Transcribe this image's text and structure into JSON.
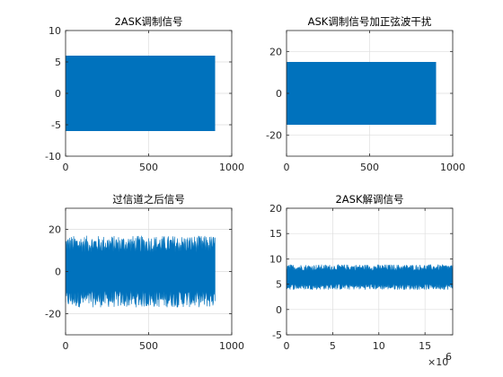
{
  "colors": {
    "signal": "#0072bd",
    "grid": "#dedede",
    "axis": "#262626",
    "background": "#ffffff"
  },
  "chart_data": [
    {
      "type": "line",
      "title": "2ASK调制信号",
      "xlim": [
        0,
        1000
      ],
      "ylim": [
        -10,
        10
      ],
      "xticks": [
        "0",
        "500",
        "1000"
      ],
      "yticks": [
        "-10",
        "-5",
        "0",
        "5",
        "10"
      ],
      "grid": true,
      "x_extent": [
        0,
        900
      ],
      "envelope": [
        -6,
        6
      ],
      "noise": 0,
      "x_multiplier": ""
    },
    {
      "type": "line",
      "title": "ASK调制信号加正弦波干扰",
      "xlim": [
        0,
        1000
      ],
      "ylim": [
        -30,
        30
      ],
      "xticks": [
        "0",
        "500",
        "1000"
      ],
      "yticks": [
        "-20",
        "0",
        "20"
      ],
      "grid": true,
      "x_extent": [
        0,
        900
      ],
      "envelope": [
        -15,
        15
      ],
      "noise": 0,
      "x_multiplier": ""
    },
    {
      "type": "line",
      "title": "过信道之后信号",
      "xlim": [
        0,
        1000
      ],
      "ylim": [
        -30,
        30
      ],
      "xticks": [
        "0",
        "500",
        "1000"
      ],
      "yticks": [
        "-20",
        "0",
        "20"
      ],
      "grid": true,
      "x_extent": [
        0,
        900
      ],
      "envelope": [
        -13,
        13
      ],
      "noise": 4,
      "x_multiplier": ""
    },
    {
      "type": "line",
      "title": "2ASK解调信号",
      "xlim": [
        0,
        18000000
      ],
      "ylim": [
        -5,
        20
      ],
      "xticks": [
        "0",
        "5",
        "10",
        "15"
      ],
      "yticks": [
        "-5",
        "0",
        "5",
        "10",
        "15",
        "20"
      ],
      "grid": true,
      "x_extent": [
        0,
        18000000
      ],
      "envelope": [
        4.5,
        8.3
      ],
      "noise": 0.6,
      "x_multiplier": "×10",
      "x_multiplier_exp": "6"
    }
  ]
}
